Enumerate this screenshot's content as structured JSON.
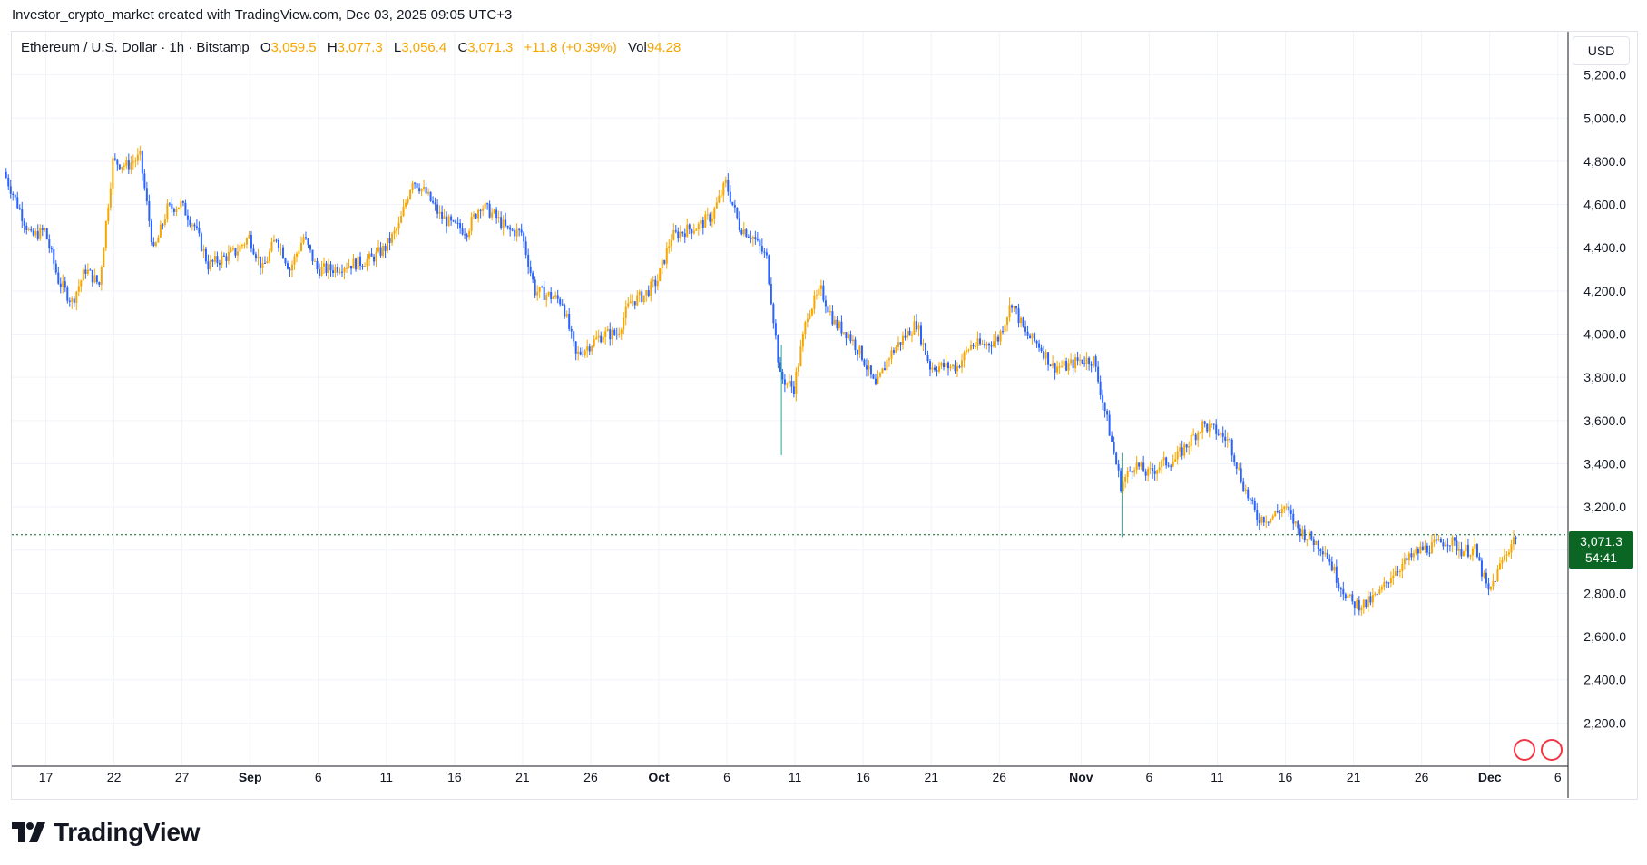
{
  "header": {
    "title": "Investor_crypto_market created with TradingView.com, Dec 03, 2025 09:05 UTC+3"
  },
  "legend": {
    "symbol": "Ethereum / U.S. Dollar · 1h · Bitstamp",
    "o_label": "O",
    "o_value": "3,059.5",
    "h_label": "H",
    "h_value": "3,077.3",
    "l_label": "L",
    "l_value": "3,056.4",
    "c_label": "C",
    "c_value": "3,071.3",
    "change": "+11.8 (+0.39%)",
    "vol_label": "Vol",
    "vol_value": "94.28"
  },
  "currency": "USD",
  "last_price": {
    "value": "3,071.3",
    "countdown": "54:41"
  },
  "branding": {
    "logo_text": "TradingView"
  },
  "colors": {
    "up": "#f7a600",
    "down": "#2962ff",
    "grid": "#f0f3fa",
    "price_line": "#0b6624",
    "wick_spike": "#26a69a",
    "event": "#f23645"
  },
  "chart_data": {
    "type": "candlestick",
    "title": "Ethereum / U.S. Dollar · 1h · Bitstamp",
    "ylim": [
      2000,
      5400
    ],
    "y_ticks": [
      "2,200.0",
      "2,400.0",
      "2,600.0",
      "2,800.0",
      "3,000.0",
      "3,200.0",
      "3,400.0",
      "3,600.0",
      "3,800.0",
      "4,000.0",
      "4,200.0",
      "4,400.0",
      "4,600.0",
      "4,800.0",
      "5,000.0",
      "5,200.0"
    ],
    "y_tick_values": [
      2200,
      2400,
      2600,
      2800,
      3000,
      3200,
      3400,
      3600,
      3800,
      4000,
      4200,
      4400,
      4600,
      4800,
      5000,
      5200
    ],
    "x_ticks": [
      {
        "label": "17",
        "date": "2025-08-17",
        "bold": false
      },
      {
        "label": "22",
        "date": "2025-08-22",
        "bold": false
      },
      {
        "label": "27",
        "date": "2025-08-27",
        "bold": false
      },
      {
        "label": "Sep",
        "date": "2025-09-01",
        "bold": true
      },
      {
        "label": "6",
        "date": "2025-09-06",
        "bold": false
      },
      {
        "label": "11",
        "date": "2025-09-11",
        "bold": false
      },
      {
        "label": "16",
        "date": "2025-09-16",
        "bold": false
      },
      {
        "label": "21",
        "date": "2025-09-21",
        "bold": false
      },
      {
        "label": "26",
        "date": "2025-09-26",
        "bold": false
      },
      {
        "label": "Oct",
        "date": "2025-10-01",
        "bold": true
      },
      {
        "label": "6",
        "date": "2025-10-06",
        "bold": false
      },
      {
        "label": "11",
        "date": "2025-10-11",
        "bold": false
      },
      {
        "label": "16",
        "date": "2025-10-16",
        "bold": false
      },
      {
        "label": "21",
        "date": "2025-10-21",
        "bold": false
      },
      {
        "label": "26",
        "date": "2025-10-26",
        "bold": false
      },
      {
        "label": "Nov",
        "date": "2025-11-01",
        "bold": true
      },
      {
        "label": "6",
        "date": "2025-11-06",
        "bold": false
      },
      {
        "label": "11",
        "date": "2025-11-11",
        "bold": false
      },
      {
        "label": "16",
        "date": "2025-11-16",
        "bold": false
      },
      {
        "label": "21",
        "date": "2025-11-21",
        "bold": false
      },
      {
        "label": "26",
        "date": "2025-11-26",
        "bold": false
      },
      {
        "label": "Dec",
        "date": "2025-12-01",
        "bold": true
      },
      {
        "label": "6",
        "date": "2025-12-06",
        "bold": false
      }
    ],
    "last_price": 3071.3,
    "series": [
      {
        "name": "ETHUSD",
        "points": [
          {
            "date": "2025-08-14",
            "close": 4750
          },
          {
            "date": "2025-08-15",
            "close": 4600
          },
          {
            "date": "2025-08-16",
            "close": 4450
          },
          {
            "date": "2025-08-17",
            "close": 4480
          },
          {
            "date": "2025-08-18",
            "close": 4250
          },
          {
            "date": "2025-08-19",
            "close": 4150
          },
          {
            "date": "2025-08-20",
            "close": 4300
          },
          {
            "date": "2025-08-21",
            "close": 4230
          },
          {
            "date": "2025-08-22",
            "close": 4800
          },
          {
            "date": "2025-08-23",
            "close": 4780
          },
          {
            "date": "2025-08-24",
            "close": 4820
          },
          {
            "date": "2025-08-25",
            "close": 4380
          },
          {
            "date": "2025-08-26",
            "close": 4580
          },
          {
            "date": "2025-08-27",
            "close": 4600
          },
          {
            "date": "2025-08-28",
            "close": 4500
          },
          {
            "date": "2025-08-29",
            "close": 4320
          },
          {
            "date": "2025-08-30",
            "close": 4350
          },
          {
            "date": "2025-08-31",
            "close": 4380
          },
          {
            "date": "2025-09-01",
            "close": 4450
          },
          {
            "date": "2025-09-02",
            "close": 4300
          },
          {
            "date": "2025-09-03",
            "close": 4450
          },
          {
            "date": "2025-09-04",
            "close": 4300
          },
          {
            "date": "2025-09-05",
            "close": 4450
          },
          {
            "date": "2025-09-06",
            "close": 4300
          },
          {
            "date": "2025-09-07",
            "close": 4300
          },
          {
            "date": "2025-09-08",
            "close": 4320
          },
          {
            "date": "2025-09-09",
            "close": 4330
          },
          {
            "date": "2025-09-10",
            "close": 4350
          },
          {
            "date": "2025-09-11",
            "close": 4400
          },
          {
            "date": "2025-09-12",
            "close": 4500
          },
          {
            "date": "2025-09-13",
            "close": 4720
          },
          {
            "date": "2025-09-14",
            "close": 4650
          },
          {
            "date": "2025-09-15",
            "close": 4550
          },
          {
            "date": "2025-09-16",
            "close": 4500
          },
          {
            "date": "2025-09-17",
            "close": 4480
          },
          {
            "date": "2025-09-18",
            "close": 4600
          },
          {
            "date": "2025-09-19",
            "close": 4550
          },
          {
            "date": "2025-09-20",
            "close": 4480
          },
          {
            "date": "2025-09-21",
            "close": 4470
          },
          {
            "date": "2025-09-22",
            "close": 4200
          },
          {
            "date": "2025-09-23",
            "close": 4180
          },
          {
            "date": "2025-09-24",
            "close": 4150
          },
          {
            "date": "2025-09-25",
            "close": 3900
          },
          {
            "date": "2025-09-26",
            "close": 3950
          },
          {
            "date": "2025-09-27",
            "close": 4000
          },
          {
            "date": "2025-09-28",
            "close": 4000
          },
          {
            "date": "2025-09-29",
            "close": 4150
          },
          {
            "date": "2025-09-30",
            "close": 4180
          },
          {
            "date": "2025-10-01",
            "close": 4250
          },
          {
            "date": "2025-10-02",
            "close": 4450
          },
          {
            "date": "2025-10-03",
            "close": 4480
          },
          {
            "date": "2025-10-04",
            "close": 4500
          },
          {
            "date": "2025-10-05",
            "close": 4550
          },
          {
            "date": "2025-10-06",
            "close": 4700
          },
          {
            "date": "2025-10-07",
            "close": 4500
          },
          {
            "date": "2025-10-08",
            "close": 4450
          },
          {
            "date": "2025-10-09",
            "close": 4350
          },
          {
            "date": "2025-10-10",
            "close": 3800
          },
          {
            "date": "2025-10-11",
            "close": 3750
          },
          {
            "date": "2025-10-12",
            "close": 4100
          },
          {
            "date": "2025-10-13",
            "close": 4200
          },
          {
            "date": "2025-10-14",
            "close": 4050
          },
          {
            "date": "2025-10-15",
            "close": 4000
          },
          {
            "date": "2025-10-16",
            "close": 3900
          },
          {
            "date": "2025-10-17",
            "close": 3750
          },
          {
            "date": "2025-10-18",
            "close": 3900
          },
          {
            "date": "2025-10-19",
            "close": 3980
          },
          {
            "date": "2025-10-20",
            "close": 4050
          },
          {
            "date": "2025-10-21",
            "close": 3850
          },
          {
            "date": "2025-10-22",
            "close": 3850
          },
          {
            "date": "2025-10-23",
            "close": 3850
          },
          {
            "date": "2025-10-24",
            "close": 3950
          },
          {
            "date": "2025-10-25",
            "close": 3950
          },
          {
            "date": "2025-10-26",
            "close": 3980
          },
          {
            "date": "2025-10-27",
            "close": 4150
          },
          {
            "date": "2025-10-28",
            "close": 4000
          },
          {
            "date": "2025-10-29",
            "close": 3950
          },
          {
            "date": "2025-10-30",
            "close": 3850
          },
          {
            "date": "2025-10-31",
            "close": 3850
          },
          {
            "date": "2025-11-01",
            "close": 3880
          },
          {
            "date": "2025-11-02",
            "close": 3880
          },
          {
            "date": "2025-11-03",
            "close": 3600
          },
          {
            "date": "2025-11-04",
            "close": 3300
          },
          {
            "date": "2025-11-05",
            "close": 3400
          },
          {
            "date": "2025-11-06",
            "close": 3350
          },
          {
            "date": "2025-11-07",
            "close": 3400
          },
          {
            "date": "2025-11-08",
            "close": 3420
          },
          {
            "date": "2025-11-09",
            "close": 3500
          },
          {
            "date": "2025-11-10",
            "close": 3580
          },
          {
            "date": "2025-11-11",
            "close": 3550
          },
          {
            "date": "2025-11-12",
            "close": 3500
          },
          {
            "date": "2025-11-13",
            "close": 3300
          },
          {
            "date": "2025-11-14",
            "close": 3150
          },
          {
            "date": "2025-11-15",
            "close": 3150
          },
          {
            "date": "2025-11-16",
            "close": 3200
          },
          {
            "date": "2025-11-17",
            "close": 3100
          },
          {
            "date": "2025-11-18",
            "close": 3050
          },
          {
            "date": "2025-11-19",
            "close": 3000
          },
          {
            "date": "2025-11-20",
            "close": 2850
          },
          {
            "date": "2025-11-21",
            "close": 2750
          },
          {
            "date": "2025-11-22",
            "close": 2750
          },
          {
            "date": "2025-11-23",
            "close": 2800
          },
          {
            "date": "2025-11-24",
            "close": 2900
          },
          {
            "date": "2025-11-25",
            "close": 2950
          },
          {
            "date": "2025-11-26",
            "close": 3000
          },
          {
            "date": "2025-11-27",
            "close": 3020
          },
          {
            "date": "2025-11-28",
            "close": 3050
          },
          {
            "date": "2025-11-29",
            "close": 3000
          },
          {
            "date": "2025-11-30",
            "close": 3000
          },
          {
            "date": "2025-12-01",
            "close": 2800
          },
          {
            "date": "2025-12-02",
            "close": 2950
          },
          {
            "date": "2025-12-03",
            "close": 3071.3
          }
        ]
      }
    ]
  }
}
